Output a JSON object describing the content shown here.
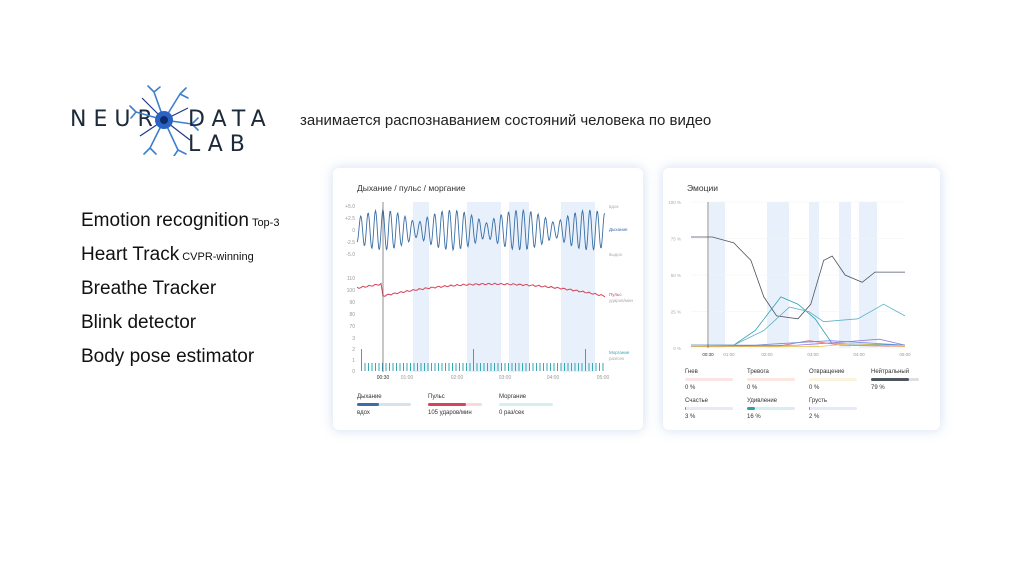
{
  "header": {
    "logo_left": "NEUR",
    "logo_right": "DATA LAB",
    "tagline": "занимается распознаванием состояний человека по видео"
  },
  "features": [
    {
      "label": "Emotion recognition",
      "badge": "Top-3"
    },
    {
      "label": "Heart Track",
      "badge": "CVPR-winning"
    },
    {
      "label": "Breathe Tracker",
      "badge": ""
    },
    {
      "label": "Blink detector",
      "badge": ""
    },
    {
      "label": "Body pose estimator",
      "badge": ""
    }
  ],
  "colors": {
    "breath": "#3a6ea5",
    "pulse": "#d6435a",
    "blink": "#35a8b4",
    "band": "#e8f1fb",
    "anger": "#e96b7b",
    "anxiety": "#f07a5a",
    "disgust": "#e8c046",
    "neutral": "#4d5560",
    "happiness": "#9c7ad6",
    "surprise": "#2f9fb0",
    "sadness": "#6e8fe0"
  },
  "left_panel": {
    "title": "Дыхание / пульс / моргание",
    "breath_ticks": [
      "+5.0",
      "+2.5",
      "0",
      "-2.5",
      "-5.0"
    ],
    "pulse_ticks": [
      "110",
      "100",
      "90",
      "80",
      "70"
    ],
    "blink_ticks": [
      "3",
      "2",
      "1",
      "0"
    ],
    "time_ticks": [
      "00:30",
      "01:00",
      "02:00",
      "03:00",
      "04:00",
      "05:00"
    ],
    "right_labels": {
      "inhale": "вдох",
      "breath": "Дыхание",
      "exhale": "выдох",
      "pulse": "Пульс",
      "pulse_unit": "ударов/мин",
      "blink": "Моргание",
      "blink_unit": "раз/сек"
    },
    "stats": [
      {
        "label": "Дыхание",
        "value": "вдох",
        "level": 0.4
      },
      {
        "label": "Пульс",
        "value": "105 ударов/мин",
        "level": 0.7
      },
      {
        "label": "Моргание",
        "value": "0 раз/сек",
        "level": 0.0
      }
    ]
  },
  "right_panel": {
    "title": "Эмоции",
    "y_ticks": [
      "100 %",
      "75 %",
      "50 %",
      "25 %",
      "0 %"
    ],
    "time_ticks": [
      "00:30",
      "01:00",
      "02:00",
      "03:00",
      "04:00",
      "05:00"
    ],
    "stats": [
      {
        "label": "Гнев",
        "value": "0 %",
        "level": 0.0
      },
      {
        "label": "Тревога",
        "value": "0 %",
        "level": 0.0
      },
      {
        "label": "Отвращение",
        "value": "0 %",
        "level": 0.0
      },
      {
        "label": "Нейтральный",
        "value": "79 %",
        "level": 0.79
      },
      {
        "label": "Счастье",
        "value": "3 %",
        "level": 0.03
      },
      {
        "label": "Удивление",
        "value": "16 %",
        "level": 0.16
      },
      {
        "label": "Грусть",
        "value": "2 %",
        "level": 0.02
      }
    ]
  }
}
